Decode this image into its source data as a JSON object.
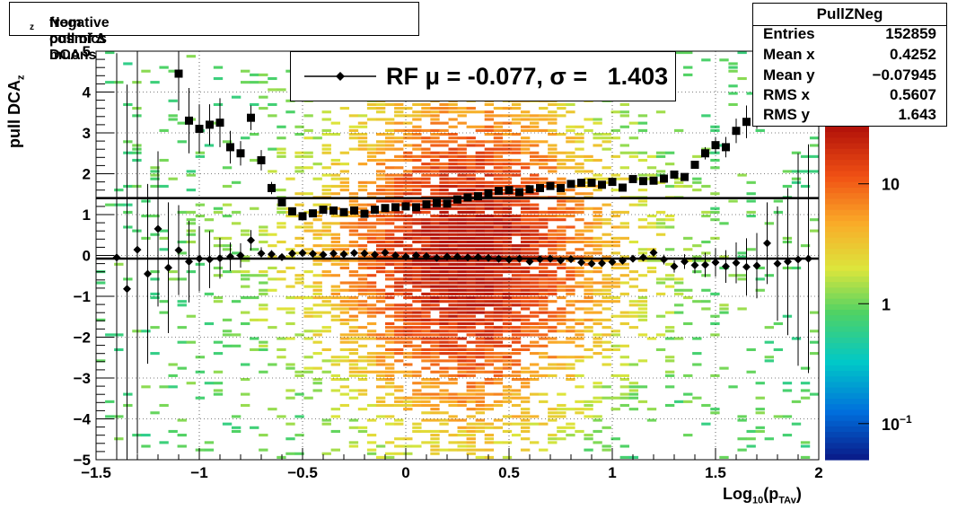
{
  "title": "Negative pull of ∆ DCA_z from cosmics muons",
  "title_parts": {
    "prefix": "Negative pull of ∆ DCA",
    "sub": "z",
    "suffix": "from cosmics muons"
  },
  "legend": {
    "label": "RF μ = -0.077, σ =   1.403"
  },
  "stats": {
    "name": "PullZNeg",
    "rows": [
      {
        "key": "Entries",
        "value": "152859"
      },
      {
        "key": "Mean x",
        "value": "0.4252"
      },
      {
        "key": "Mean y",
        "value": "−0.07945"
      },
      {
        "key": "RMS x",
        "value": "0.5607"
      },
      {
        "key": "RMS y",
        "value": "1.643"
      }
    ]
  },
  "chart_data": {
    "type": "heatmap",
    "title": "Negative pull of ∆ DCA_z from cosmics muons",
    "xlabel": "Log10(pTAv)",
    "xlabel_parts": {
      "a": "Log",
      "b": "10",
      "c": "(p",
      "d": "TAv",
      "e": ")"
    },
    "ylabel": "pull DCA_z",
    "ylabel_parts": {
      "a": "pull DCA",
      "b": "z"
    },
    "xlim": [
      -1.5,
      2
    ],
    "ylim": [
      -5,
      5
    ],
    "x_ticks": [
      "−1.5",
      "−1",
      "−0.5",
      "0",
      "0.5",
      "1",
      "1.5",
      "2"
    ],
    "x_tick_values": [
      -1.5,
      -1,
      -0.5,
      0,
      0.5,
      1,
      1.5,
      2
    ],
    "y_ticks": [
      "−5",
      "−4",
      "−3",
      "−2",
      "−1",
      "0",
      "1",
      "2",
      "3",
      "4",
      "5"
    ],
    "y_tick_values": [
      -5,
      -4,
      -3,
      -2,
      -1,
      0,
      1,
      2,
      3,
      4,
      5
    ],
    "grid": true,
    "colorbar": {
      "scale": "log",
      "ticks": [
        "10",
        "1",
        "10^−1"
      ],
      "tick_values": [
        10,
        1,
        0.1
      ],
      "range": [
        0.05,
        30
      ]
    },
    "fit_lines": {
      "mean": -0.077,
      "sigma": 1.403
    },
    "series": [
      {
        "name": "mean",
        "marker": "diamond",
        "x": [
          -1.4,
          -1.35,
          -1.3,
          -1.25,
          -1.2,
          -1.15,
          -1.1,
          -1.05,
          -1.0,
          -0.95,
          -0.9,
          -0.85,
          -0.8,
          -0.75,
          -0.7,
          -0.65,
          -0.6,
          -0.55,
          -0.5,
          -0.45,
          -0.4,
          -0.35,
          -0.3,
          -0.25,
          -0.2,
          -0.15,
          -0.1,
          -0.05,
          0.0,
          0.05,
          0.1,
          0.15,
          0.2,
          0.25,
          0.3,
          0.35,
          0.4,
          0.45,
          0.5,
          0.55,
          0.6,
          0.65,
          0.7,
          0.75,
          0.8,
          0.85,
          0.9,
          0.95,
          1.0,
          1.05,
          1.1,
          1.15,
          1.2,
          1.25,
          1.3,
          1.35,
          1.4,
          1.45,
          1.5,
          1.55,
          1.6,
          1.65,
          1.7,
          1.75,
          1.8,
          1.85,
          1.9,
          1.95
        ],
        "values": [
          -0.05,
          -0.82,
          0.14,
          -0.45,
          0.65,
          -0.3,
          0.13,
          -0.15,
          -0.08,
          -0.1,
          -0.07,
          -0.03,
          0.0,
          0.37,
          0.05,
          0.03,
          -0.04,
          0.05,
          0.06,
          0.04,
          0.02,
          0.05,
          0.03,
          0.06,
          0.05,
          0.02,
          0.07,
          0.0,
          -0.03,
          0.0,
          -0.02,
          -0.06,
          -0.03,
          -0.03,
          -0.05,
          -0.04,
          -0.06,
          -0.08,
          -0.1,
          -0.08,
          -0.15,
          -0.09,
          -0.08,
          -0.12,
          -0.09,
          -0.17,
          -0.2,
          -0.19,
          -0.16,
          -0.13,
          -0.08,
          -0.05,
          0.07,
          -0.1,
          -0.27,
          -0.15,
          -0.24,
          -0.23,
          -0.17,
          -0.27,
          -0.18,
          -0.28,
          -0.25,
          0.3,
          -0.2,
          -0.15,
          -0.1,
          -0.08
        ],
        "errors": [
          5,
          5,
          5,
          2.2,
          1.9,
          1.6,
          1.1,
          1.0,
          0.8,
          0.7,
          0.5,
          0.35,
          0.3,
          0.25,
          0.15,
          0.1,
          0.08,
          0.06,
          0.05,
          0.04,
          0.03,
          0.03,
          0.03,
          0.02,
          0.02,
          0.02,
          0.02,
          0.02,
          0.02,
          0.02,
          0.02,
          0.02,
          0.02,
          0.02,
          0.02,
          0.02,
          0.02,
          0.02,
          0.02,
          0.02,
          0.02,
          0.02,
          0.02,
          0.03,
          0.03,
          0.03,
          0.04,
          0.05,
          0.05,
          0.06,
          0.07,
          0.08,
          0.1,
          0.12,
          0.15,
          0.18,
          0.2,
          0.3,
          0.35,
          0.4,
          0.5,
          0.7,
          0.8,
          1.0,
          1.4,
          1.8,
          2.6,
          2.8
        ]
      },
      {
        "name": "rms",
        "marker": "square",
        "x": [
          -1.1,
          -1.05,
          -1.0,
          -0.95,
          -0.9,
          -0.85,
          -0.8,
          -0.75,
          -0.7,
          -0.65,
          -0.6,
          -0.55,
          -0.5,
          -0.45,
          -0.4,
          -0.35,
          -0.3,
          -0.25,
          -0.2,
          -0.15,
          -0.1,
          -0.05,
          0.0,
          0.05,
          0.1,
          0.15,
          0.2,
          0.25,
          0.3,
          0.35,
          0.4,
          0.45,
          0.5,
          0.55,
          0.6,
          0.65,
          0.7,
          0.75,
          0.8,
          0.85,
          0.9,
          0.95,
          1.0,
          1.05,
          1.1,
          1.15,
          1.2,
          1.25,
          1.3,
          1.35,
          1.4,
          1.45,
          1.5,
          1.55,
          1.6,
          1.65,
          1.7,
          1.75
        ],
        "values": [
          4.45,
          3.3,
          3.1,
          3.2,
          3.25,
          2.65,
          2.5,
          3.37,
          2.33,
          1.65,
          1.3,
          1.08,
          0.96,
          1.03,
          1.12,
          1.1,
          1.06,
          1.1,
          1.02,
          1.12,
          1.16,
          1.18,
          1.2,
          1.18,
          1.25,
          1.28,
          1.27,
          1.37,
          1.42,
          1.45,
          1.52,
          1.58,
          1.6,
          1.55,
          1.62,
          1.65,
          1.7,
          1.65,
          1.75,
          1.78,
          1.78,
          1.73,
          1.8,
          1.66,
          1.87,
          1.82,
          1.83,
          1.88,
          1.98,
          1.92,
          2.22,
          2.5,
          2.7,
          2.65,
          3.05,
          3.27,
          3.6,
          3.95
        ],
        "errors": [
          0.9,
          0.8,
          0.6,
          0.5,
          0.6,
          0.4,
          0.3,
          0.3,
          0.25,
          0.15,
          0.06,
          0.04,
          0.03,
          0.03,
          0.02,
          0.02,
          0.02,
          0.02,
          0.02,
          0.02,
          0.02,
          0.02,
          0.02,
          0.02,
          0.02,
          0.02,
          0.02,
          0.02,
          0.02,
          0.02,
          0.02,
          0.02,
          0.02,
          0.02,
          0.02,
          0.02,
          0.02,
          0.02,
          0.02,
          0.02,
          0.02,
          0.02,
          0.02,
          0.02,
          0.03,
          0.03,
          0.04,
          0.05,
          0.06,
          0.07,
          0.1,
          0.15,
          0.2,
          0.25,
          0.3,
          0.4,
          0.5,
          0.6
        ]
      }
    ]
  }
}
